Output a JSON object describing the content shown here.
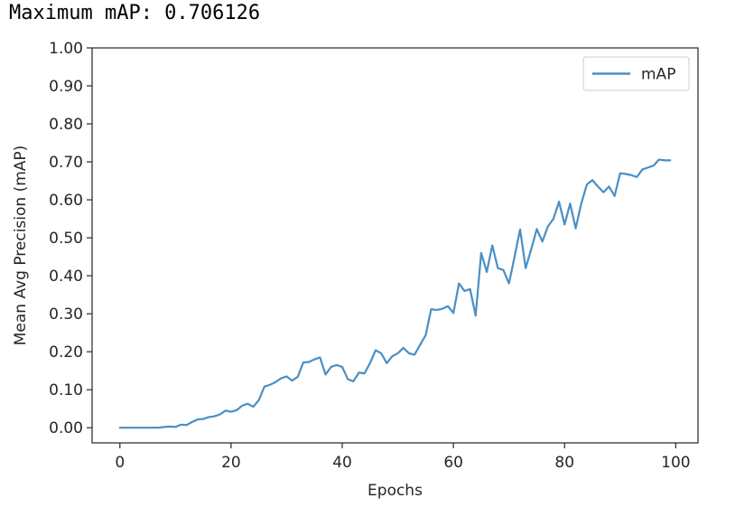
{
  "output": {
    "text": "Maximum mAP: 0.706126"
  },
  "chart_data": {
    "type": "line",
    "title": "",
    "xlabel": "Epochs",
    "ylabel": "Mean Avg Precision (mAP)",
    "xlim": [
      -5,
      104
    ],
    "ylim": [
      -0.04,
      1.0
    ],
    "xticks": [
      0,
      20,
      40,
      60,
      80,
      100
    ],
    "xtick_labels": [
      "0",
      "20",
      "40",
      "60",
      "80",
      "100"
    ],
    "yticks": [
      0.0,
      0.1,
      0.2,
      0.3,
      0.4,
      0.5,
      0.6,
      0.7,
      0.8,
      0.9,
      1.0
    ],
    "ytick_labels": [
      "0.00",
      "0.10",
      "0.20",
      "0.30",
      "0.40",
      "0.50",
      "0.60",
      "0.70",
      "0.80",
      "0.90",
      "1.00"
    ],
    "grid": false,
    "legend_position": "top-right",
    "series": [
      {
        "name": "mAP",
        "color": "#4b8fc3",
        "x": [
          0,
          1,
          2,
          3,
          4,
          5,
          6,
          7,
          8,
          9,
          10,
          11,
          12,
          13,
          14,
          15,
          16,
          17,
          18,
          19,
          20,
          21,
          22,
          23,
          24,
          25,
          26,
          27,
          28,
          29,
          30,
          31,
          32,
          33,
          34,
          35,
          36,
          37,
          38,
          39,
          40,
          41,
          42,
          43,
          44,
          45,
          46,
          47,
          48,
          49,
          50,
          51,
          52,
          53,
          54,
          55,
          56,
          57,
          58,
          59,
          60,
          61,
          62,
          63,
          64,
          65,
          66,
          67,
          68,
          69,
          70,
          71,
          72,
          73,
          74,
          75,
          76,
          77,
          78,
          79,
          80,
          81,
          82,
          83,
          84,
          85,
          86,
          87,
          88,
          89,
          90,
          91,
          92,
          93,
          94,
          95,
          96,
          97,
          98,
          99
        ],
        "y": [
          0.0,
          0.0,
          0.0,
          0.0,
          0.0,
          0.0,
          0.0,
          0.0,
          0.002,
          0.003,
          0.002,
          0.008,
          0.007,
          0.015,
          0.022,
          0.023,
          0.028,
          0.03,
          0.035,
          0.045,
          0.042,
          0.046,
          0.058,
          0.063,
          0.055,
          0.073,
          0.108,
          0.113,
          0.12,
          0.13,
          0.135,
          0.124,
          0.134,
          0.172,
          0.173,
          0.18,
          0.185,
          0.14,
          0.16,
          0.165,
          0.16,
          0.128,
          0.122,
          0.145,
          0.143,
          0.17,
          0.204,
          0.196,
          0.17,
          0.188,
          0.196,
          0.21,
          0.196,
          0.192,
          0.218,
          0.243,
          0.312,
          0.31,
          0.313,
          0.32,
          0.302,
          0.38,
          0.36,
          0.365,
          0.295,
          0.46,
          0.41,
          0.48,
          0.42,
          0.415,
          0.38,
          0.45,
          0.522,
          0.42,
          0.47,
          0.523,
          0.49,
          0.53,
          0.55,
          0.595,
          0.535,
          0.59,
          0.525,
          0.59,
          0.64,
          0.652,
          0.635,
          0.62,
          0.635,
          0.61,
          0.67,
          0.668,
          0.665,
          0.66,
          0.68,
          0.685,
          0.69,
          0.706,
          0.704,
          0.704
        ]
      }
    ]
  }
}
